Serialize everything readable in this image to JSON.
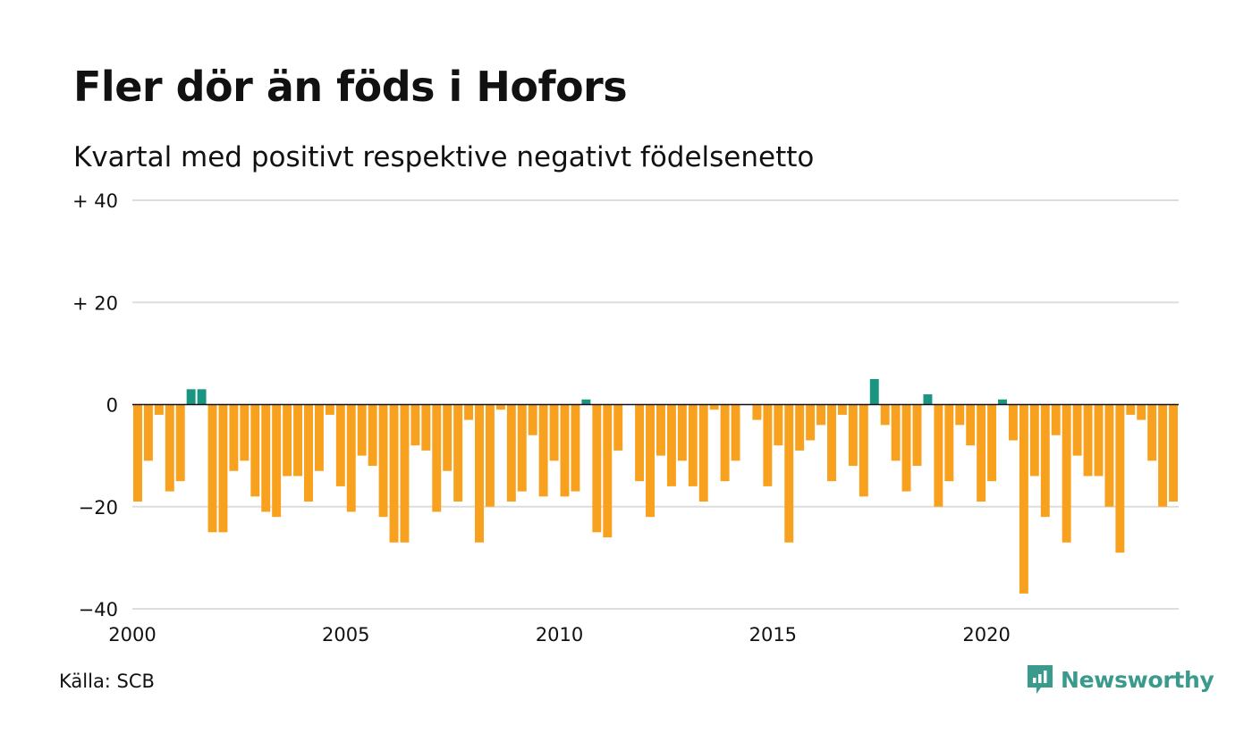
{
  "title": "Fler dör än föds i Hofors",
  "subtitle": "Kvartal med positivt respektive negativt födelsenetto",
  "source": "Källa: SCB",
  "brand": "Newsworthy",
  "colors": {
    "positive": "#1a9582",
    "negative": "#f7a11e",
    "grid": "#dddddd",
    "baseline": "#111111",
    "brand": "#3a9a8c"
  },
  "chart_data": {
    "type": "bar",
    "title": "Fler dör än föds i Hofors",
    "subtitle": "Kvartal med positivt respektive negativt födelsenetto",
    "ylim": [
      -40,
      40
    ],
    "yticks": [
      40,
      20,
      0,
      -20,
      -40
    ],
    "ytick_labels": [
      "+ 40",
      "+ 20",
      "0",
      "−20",
      "−40"
    ],
    "x_start_year": 2000,
    "x_end_year": 2024.5,
    "xticks": [
      2000,
      2005,
      2010,
      2015,
      2020
    ],
    "xtick_labels": [
      "2000",
      "2005",
      "2010",
      "2015",
      "2020"
    ],
    "grid": true,
    "values": [
      -19,
      -11,
      -2,
      -17,
      -15,
      3,
      3,
      -25,
      -25,
      -13,
      -11,
      -18,
      -21,
      -22,
      -14,
      -14,
      -19,
      -13,
      -2,
      -16,
      -21,
      -10,
      -12,
      -22,
      -27,
      -27,
      -8,
      -9,
      -21,
      -13,
      -19,
      -3,
      -27,
      -20,
      -1,
      -19,
      -17,
      -6,
      -18,
      -11,
      -18,
      -17,
      1,
      -25,
      -26,
      -9,
      0,
      -15,
      -22,
      -10,
      -16,
      -11,
      -16,
      -19,
      -1,
      -15,
      -11,
      0,
      -3,
      -16,
      -8,
      -27,
      -9,
      -7,
      -4,
      -15,
      -2,
      -12,
      -18,
      5,
      -4,
      -11,
      -17,
      -12,
      2,
      -20,
      -15,
      -4,
      -8,
      -19,
      -15,
      1,
      -7,
      -37,
      -14,
      -22,
      -6,
      -27,
      -10,
      -14,
      -14,
      -20,
      -29,
      -2,
      -3,
      -11,
      -20,
      -19
    ]
  }
}
